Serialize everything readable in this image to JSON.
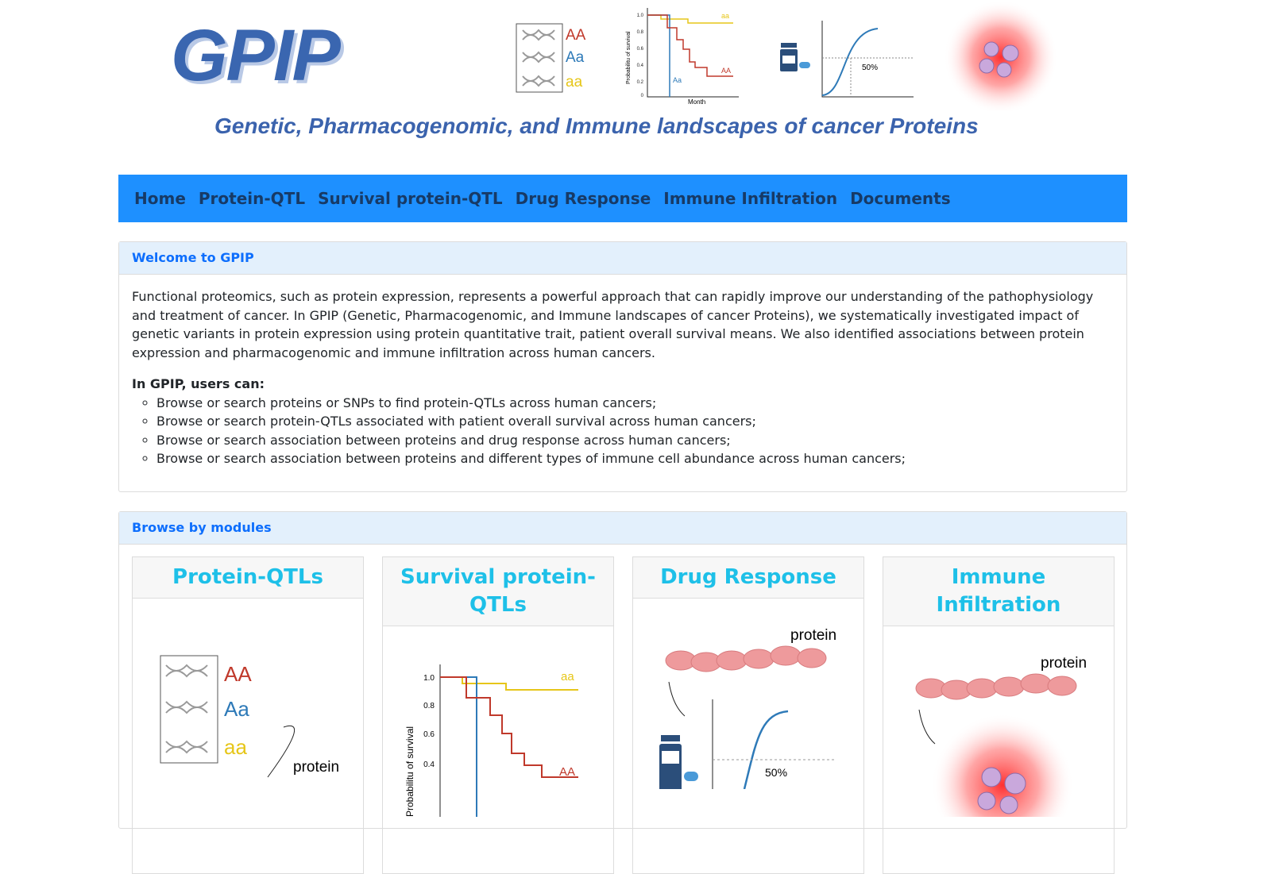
{
  "header": {
    "logo": "GPIP",
    "subtitle": "Genetic, Pharmacogenomic, and Immune landscapes of cancer Proteins",
    "genotypes": [
      "AA",
      "Aa",
      "aa"
    ],
    "survival": {
      "ylabel": "Probabilitu of survival",
      "xlabel": "Month",
      "ticks": [
        "1.0",
        "0.8",
        "0.6",
        "0.4",
        "0.2",
        "0"
      ],
      "labels": [
        "aa",
        "Aa",
        "AA"
      ]
    },
    "drug_label": "50%"
  },
  "nav": [
    "Home",
    "Protein-QTL",
    "Survival protein-QTL",
    "Drug Response",
    "Immune Infiltration",
    "Documents"
  ],
  "welcome": {
    "title": "Welcome to GPIP",
    "text": "Functional proteomics, such as protein expression, represents a powerful approach that can rapidly improve our understanding of the pathophysiology and treatment of cancer. In GPIP (Genetic, Pharmacogenomic, and Immune landscapes of cancer Proteins), we systematically investigated impact of genetic variants in protein expression using protein quantitative trait, patient overall survival means. We also identified associations between protein expression and pharmacogenomic and immune infiltration across human cancers.",
    "users_title": "In GPIP, users can:",
    "items": [
      "Browse or search proteins or SNPs to find protein-QTLs across human cancers;",
      "Browse or search protein-QTLs associated with patient overall survival across human cancers;",
      "Browse or search association between proteins and drug response across human cancers;",
      "Browse or search association between proteins and different types of immune cell abundance across human cancers;"
    ]
  },
  "modules": {
    "title": "Browse by modules",
    "cards": [
      {
        "title": "Protein-QTLs",
        "labels": [
          "AA",
          "Aa",
          "aa",
          "protein"
        ]
      },
      {
        "title": "Survival protein-QTLs",
        "ylabel": "Probabilitu of survival",
        "ticks": [
          "1.0",
          "0.8",
          "0.6",
          "0.4"
        ],
        "labels": [
          "aa",
          "AA"
        ]
      },
      {
        "title": "Drug Response",
        "labels": [
          "protein",
          "50%"
        ]
      },
      {
        "title": "Immune Infiltration",
        "labels": [
          "protein"
        ]
      }
    ]
  }
}
